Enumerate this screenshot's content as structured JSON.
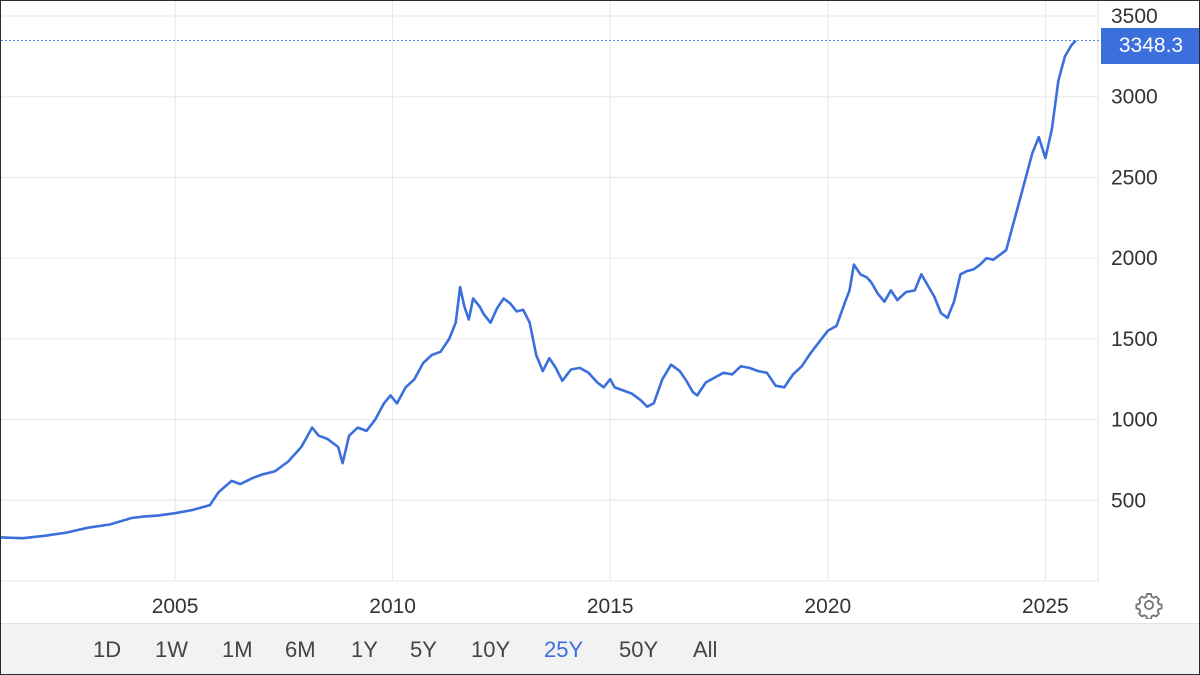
{
  "chart_data": {
    "type": "line",
    "title": "",
    "xlabel": "",
    "ylabel": "",
    "xlim": [
      2001.0,
      2025.75
    ],
    "ylim": [
      0,
      3500
    ],
    "y_ticks": [
      500,
      1000,
      1500,
      2000,
      2500,
      3000,
      3500
    ],
    "x_ticks": [
      2005,
      2010,
      2015,
      2020,
      2025
    ],
    "grid": true,
    "colors": {
      "line": "#3b6fdc",
      "badge": "#3b6fdc",
      "active_range": "#3b6fdc"
    },
    "last_value": 3348.3,
    "last_value_label": "3348.3",
    "series": [
      {
        "x": [
          2001.0,
          2001.5,
          2002.0,
          2002.5,
          2003.0,
          2003.5,
          2004.0,
          2004.3,
          2004.6,
          2005.0,
          2005.4,
          2005.8,
          2006.0,
          2006.3,
          2006.5,
          2006.8,
          2007.0,
          2007.3,
          2007.6,
          2007.9,
          2008.15,
          2008.3,
          2008.5,
          2008.75,
          2008.85,
          2009.0,
          2009.2,
          2009.4,
          2009.6,
          2009.8,
          2009.95,
          2010.1,
          2010.3,
          2010.5,
          2010.7,
          2010.9,
          2011.1,
          2011.3,
          2011.45,
          2011.55,
          2011.65,
          2011.75,
          2011.85,
          2012.0,
          2012.1,
          2012.25,
          2012.4,
          2012.55,
          2012.7,
          2012.85,
          2013.0,
          2013.15,
          2013.3,
          2013.45,
          2013.6,
          2013.75,
          2013.9,
          2014.1,
          2014.3,
          2014.5,
          2014.7,
          2014.85,
          2015.0,
          2015.1,
          2015.3,
          2015.5,
          2015.7,
          2015.85,
          2016.0,
          2016.2,
          2016.4,
          2016.6,
          2016.75,
          2016.9,
          2017.0,
          2017.2,
          2017.4,
          2017.6,
          2017.8,
          2018.0,
          2018.2,
          2018.4,
          2018.6,
          2018.8,
          2019.0,
          2019.2,
          2019.4,
          2019.6,
          2019.8,
          2020.0,
          2020.2,
          2020.4,
          2020.5,
          2020.6,
          2020.75,
          2020.9,
          2021.0,
          2021.15,
          2021.3,
          2021.45,
          2021.6,
          2021.8,
          2022.0,
          2022.15,
          2022.3,
          2022.45,
          2022.6,
          2022.75,
          2022.9,
          2023.05,
          2023.2,
          2023.35,
          2023.5,
          2023.65,
          2023.8,
          2023.95,
          2024.1,
          2024.25,
          2024.4,
          2024.55,
          2024.7,
          2024.85,
          2025.0,
          2025.15,
          2025.3,
          2025.45,
          2025.6,
          2025.7
        ],
        "values": [
          270,
          265,
          280,
          300,
          330,
          350,
          390,
          400,
          405,
          420,
          440,
          470,
          550,
          620,
          600,
          640,
          660,
          680,
          740,
          830,
          950,
          900,
          880,
          830,
          730,
          900,
          950,
          930,
          1000,
          1100,
          1150,
          1100,
          1200,
          1250,
          1350,
          1400,
          1420,
          1500,
          1600,
          1820,
          1700,
          1620,
          1750,
          1700,
          1650,
          1600,
          1690,
          1750,
          1720,
          1670,
          1680,
          1600,
          1400,
          1300,
          1380,
          1320,
          1240,
          1310,
          1320,
          1290,
          1230,
          1200,
          1250,
          1200,
          1180,
          1160,
          1120,
          1080,
          1100,
          1250,
          1340,
          1300,
          1240,
          1170,
          1150,
          1230,
          1260,
          1290,
          1280,
          1330,
          1320,
          1300,
          1290,
          1210,
          1200,
          1280,
          1330,
          1410,
          1480,
          1550,
          1580,
          1730,
          1800,
          1960,
          1900,
          1880,
          1850,
          1780,
          1730,
          1800,
          1740,
          1790,
          1800,
          1900,
          1830,
          1760,
          1660,
          1630,
          1730,
          1900,
          1920,
          1930,
          1960,
          2000,
          1990,
          2020,
          2050,
          2200,
          2350,
          2500,
          2650,
          2750,
          2620,
          2800,
          3100,
          3250,
          3320,
          3348.3
        ]
      }
    ]
  },
  "range_buttons": [
    {
      "label": "1D",
      "active": false
    },
    {
      "label": "1W",
      "active": false
    },
    {
      "label": "1M",
      "active": false
    },
    {
      "label": "6M",
      "active": false
    },
    {
      "label": "1Y",
      "active": false
    },
    {
      "label": "5Y",
      "active": false
    },
    {
      "label": "10Y",
      "active": false
    },
    {
      "label": "25Y",
      "active": true
    },
    {
      "label": "50Y",
      "active": false
    },
    {
      "label": "All",
      "active": false
    }
  ],
  "settings_icon": "gear-icon"
}
